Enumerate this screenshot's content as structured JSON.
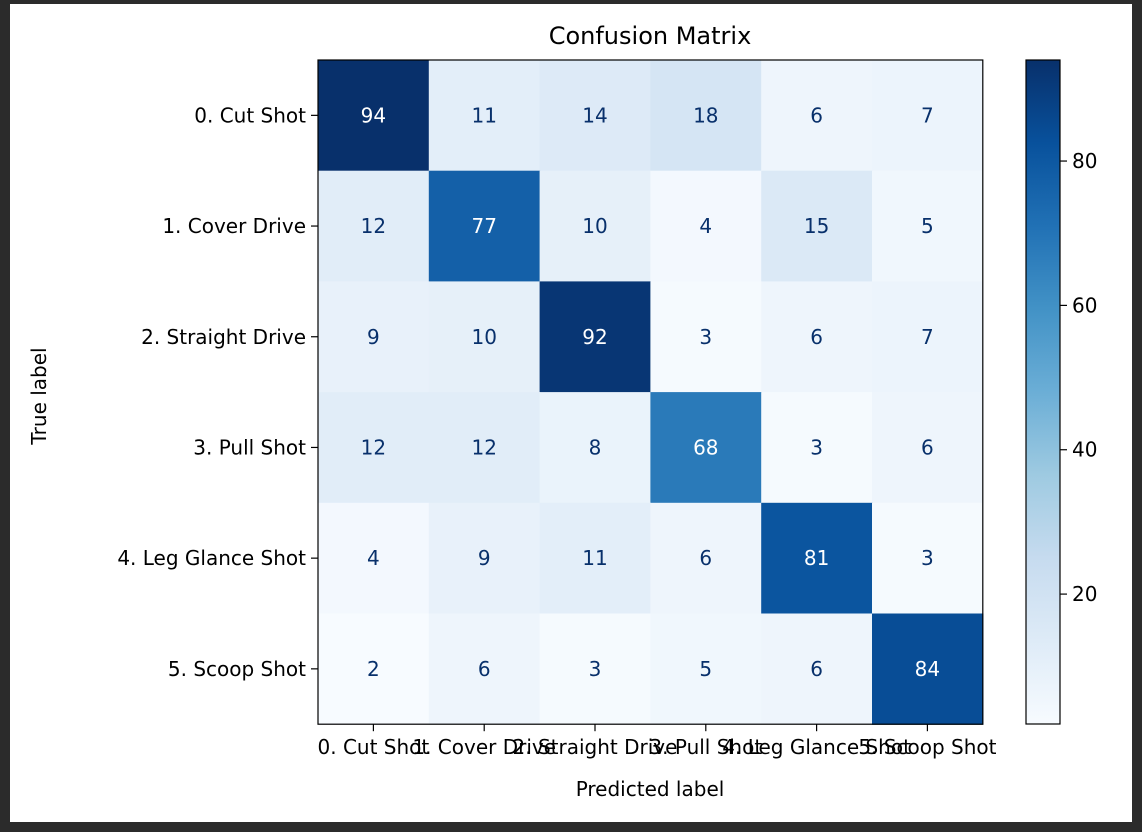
{
  "chart_data": {
    "type": "heatmap",
    "title": "Confusion Matrix",
    "xlabel": "Predicted label",
    "ylabel": "True label",
    "row_labels": [
      "0. Cut Shot",
      "1. Cover Drive",
      "2. Straight Drive",
      "3. Pull Shot",
      "4. Leg Glance Shot",
      "5. Scoop Shot"
    ],
    "col_labels": [
      "0. Cut Shot",
      "1. Cover Drive",
      "2. Straight Drive",
      "3. Pull Shot",
      "4. Leg Glance Shot",
      "5. Scoop Shot"
    ],
    "matrix": [
      [
        94,
        11,
        14,
        18,
        6,
        7
      ],
      [
        12,
        77,
        10,
        4,
        15,
        5
      ],
      [
        9,
        10,
        92,
        3,
        6,
        7
      ],
      [
        12,
        12,
        8,
        68,
        3,
        6
      ],
      [
        4,
        9,
        11,
        6,
        81,
        3
      ],
      [
        2,
        6,
        3,
        5,
        6,
        84
      ]
    ],
    "colormap": "Blues",
    "colorbar": {
      "range": [
        2,
        94
      ],
      "ticks": [
        20,
        40,
        60,
        80
      ]
    },
    "text_color_light": "#ffffff",
    "text_color_dark": "#08306b"
  }
}
